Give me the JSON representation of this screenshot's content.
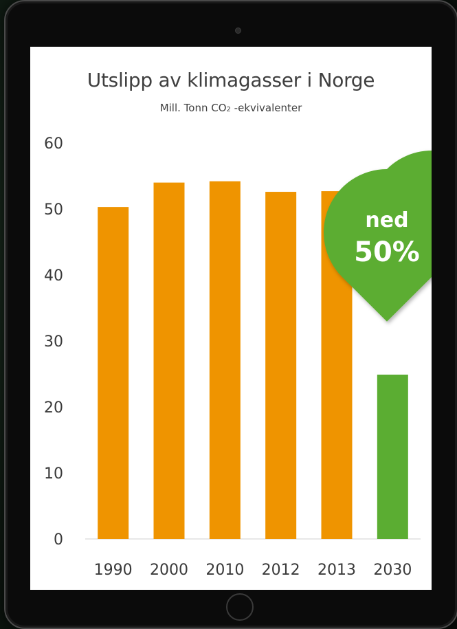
{
  "chart_data": {
    "type": "bar",
    "title": "Utslipp av klimagasser i Norge",
    "subtitle_main": "Mill. Tonn CO",
    "subtitle_sub": "2",
    "subtitle_tail": " -ekvivalenter",
    "categories": [
      "1990",
      "2000",
      "2010",
      "2012",
      "2013",
      "2030"
    ],
    "values": [
      50.3,
      54.0,
      54.2,
      52.6,
      52.7,
      24.9
    ],
    "ylim": [
      0,
      60
    ],
    "yticks": [
      0,
      10,
      20,
      30,
      40,
      50,
      60
    ],
    "grid": false,
    "colors": {
      "historic": "#ef9400",
      "target": "#5bad32",
      "badge": "#5bad32"
    },
    "annotation": {
      "line1": "ned",
      "line2": "50%"
    }
  }
}
